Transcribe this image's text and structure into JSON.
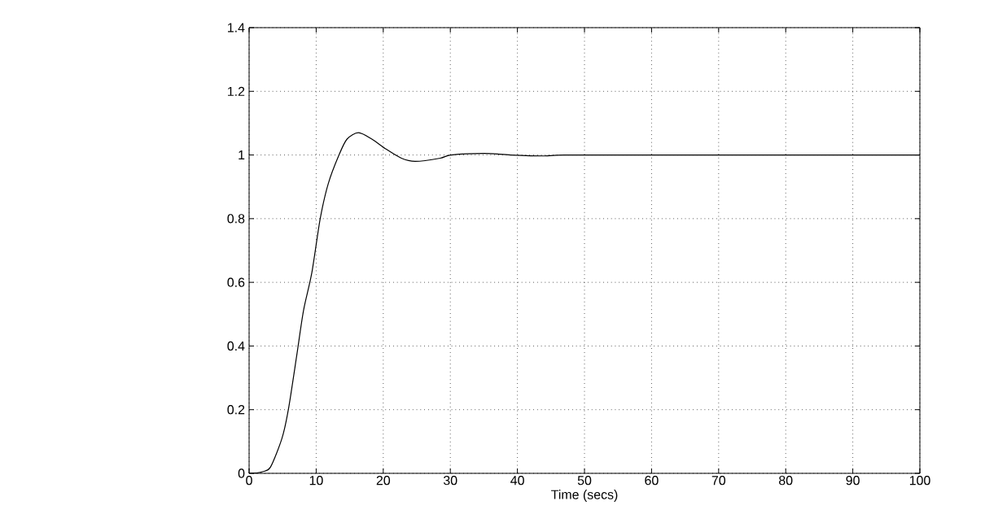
{
  "chart_data": {
    "type": "line",
    "xlabel": "Time (secs)",
    "x": [
      0,
      1,
      2,
      3.2,
      4.9,
      5.85,
      7.1,
      8.1,
      9.35,
      10.6,
      11.8,
      13.4,
      14.6,
      16.3,
      18.3,
      20.3,
      22.7,
      24.8,
      28.5,
      30.1,
      35,
      39,
      44,
      47,
      60,
      80,
      100
    ],
    "series": [
      {
        "color": "#000000",
        "values": [
          0,
          0.001,
          0.005,
          0.02,
          0.11,
          0.2,
          0.37,
          0.51,
          0.63,
          0.8,
          0.91,
          1.0,
          1.05,
          1.07,
          1.05,
          1.02,
          0.99,
          0.98,
          0.99,
          1.0,
          1.005,
          1.0,
          0.997,
          1.0,
          1.0,
          1.0,
          1.0
        ]
      }
    ],
    "xlim": [
      0,
      100
    ],
    "ylim": [
      0,
      1.4
    ],
    "xticks": [
      0,
      10,
      20,
      30,
      40,
      50,
      60,
      70,
      80,
      90,
      100
    ],
    "yticks": [
      0,
      0.2,
      0.4,
      0.6,
      0.8,
      1,
      1.2,
      1.4
    ],
    "grid": true,
    "line_style": "solid"
  }
}
